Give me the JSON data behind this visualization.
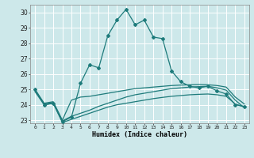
{
  "xlabel": "Humidex (Indice chaleur)",
  "xlim": [
    -0.5,
    23.5
  ],
  "ylim": [
    22.8,
    30.5
  ],
  "yticks": [
    23,
    24,
    25,
    26,
    27,
    28,
    29,
    30
  ],
  "xticks": [
    0,
    1,
    2,
    3,
    4,
    5,
    6,
    7,
    8,
    9,
    10,
    11,
    12,
    13,
    14,
    15,
    16,
    17,
    18,
    19,
    20,
    21,
    22,
    23
  ],
  "bg_color": "#cde8ea",
  "grid_color": "#ffffff",
  "line_color": "#1e7b7b",
  "series1": [
    25.0,
    24.0,
    24.1,
    22.9,
    23.2,
    25.4,
    26.6,
    26.4,
    28.5,
    29.5,
    30.2,
    29.2,
    29.5,
    28.4,
    28.3,
    26.2,
    25.5,
    25.2,
    25.1,
    25.2,
    24.9,
    24.7,
    24.0,
    23.9
  ],
  "series2": [
    25.0,
    24.1,
    24.2,
    23.0,
    24.3,
    24.5,
    24.55,
    24.65,
    24.75,
    24.85,
    24.95,
    25.05,
    25.1,
    25.15,
    25.2,
    25.25,
    25.28,
    25.3,
    25.32,
    25.3,
    25.25,
    25.15,
    24.5,
    24.05
  ],
  "series3": [
    24.85,
    24.0,
    24.1,
    22.85,
    23.05,
    23.25,
    23.45,
    23.65,
    23.85,
    24.0,
    24.1,
    24.2,
    24.3,
    24.4,
    24.48,
    24.55,
    24.6,
    24.65,
    24.68,
    24.7,
    24.65,
    24.55,
    24.05,
    23.85
  ],
  "series4": [
    24.95,
    24.05,
    24.15,
    22.95,
    23.25,
    23.45,
    23.65,
    23.9,
    24.1,
    24.3,
    24.5,
    24.65,
    24.75,
    24.85,
    24.95,
    25.05,
    25.1,
    25.15,
    25.18,
    25.2,
    25.1,
    24.95,
    24.3,
    23.8
  ]
}
